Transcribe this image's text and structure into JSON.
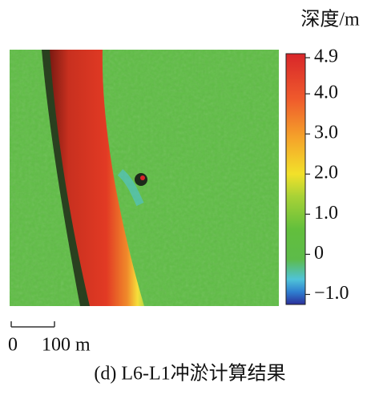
{
  "colorbar": {
    "title": "深度/m",
    "ticks": [
      4.9,
      {
        "value": 4,
        "label": "4.0"
      },
      {
        "value": 3,
        "label": "3.0"
      },
      {
        "value": 2,
        "label": "2.0"
      },
      {
        "value": 1,
        "label": "1.0"
      },
      0,
      {
        "value": -1,
        "label": "−1.0"
      }
    ],
    "clim": [
      -1.25,
      5.0
    ]
  },
  "scale_bar": {
    "start": "0",
    "end": "100 m"
  },
  "caption": "(d) L6-L1冲淤计算结果"
}
